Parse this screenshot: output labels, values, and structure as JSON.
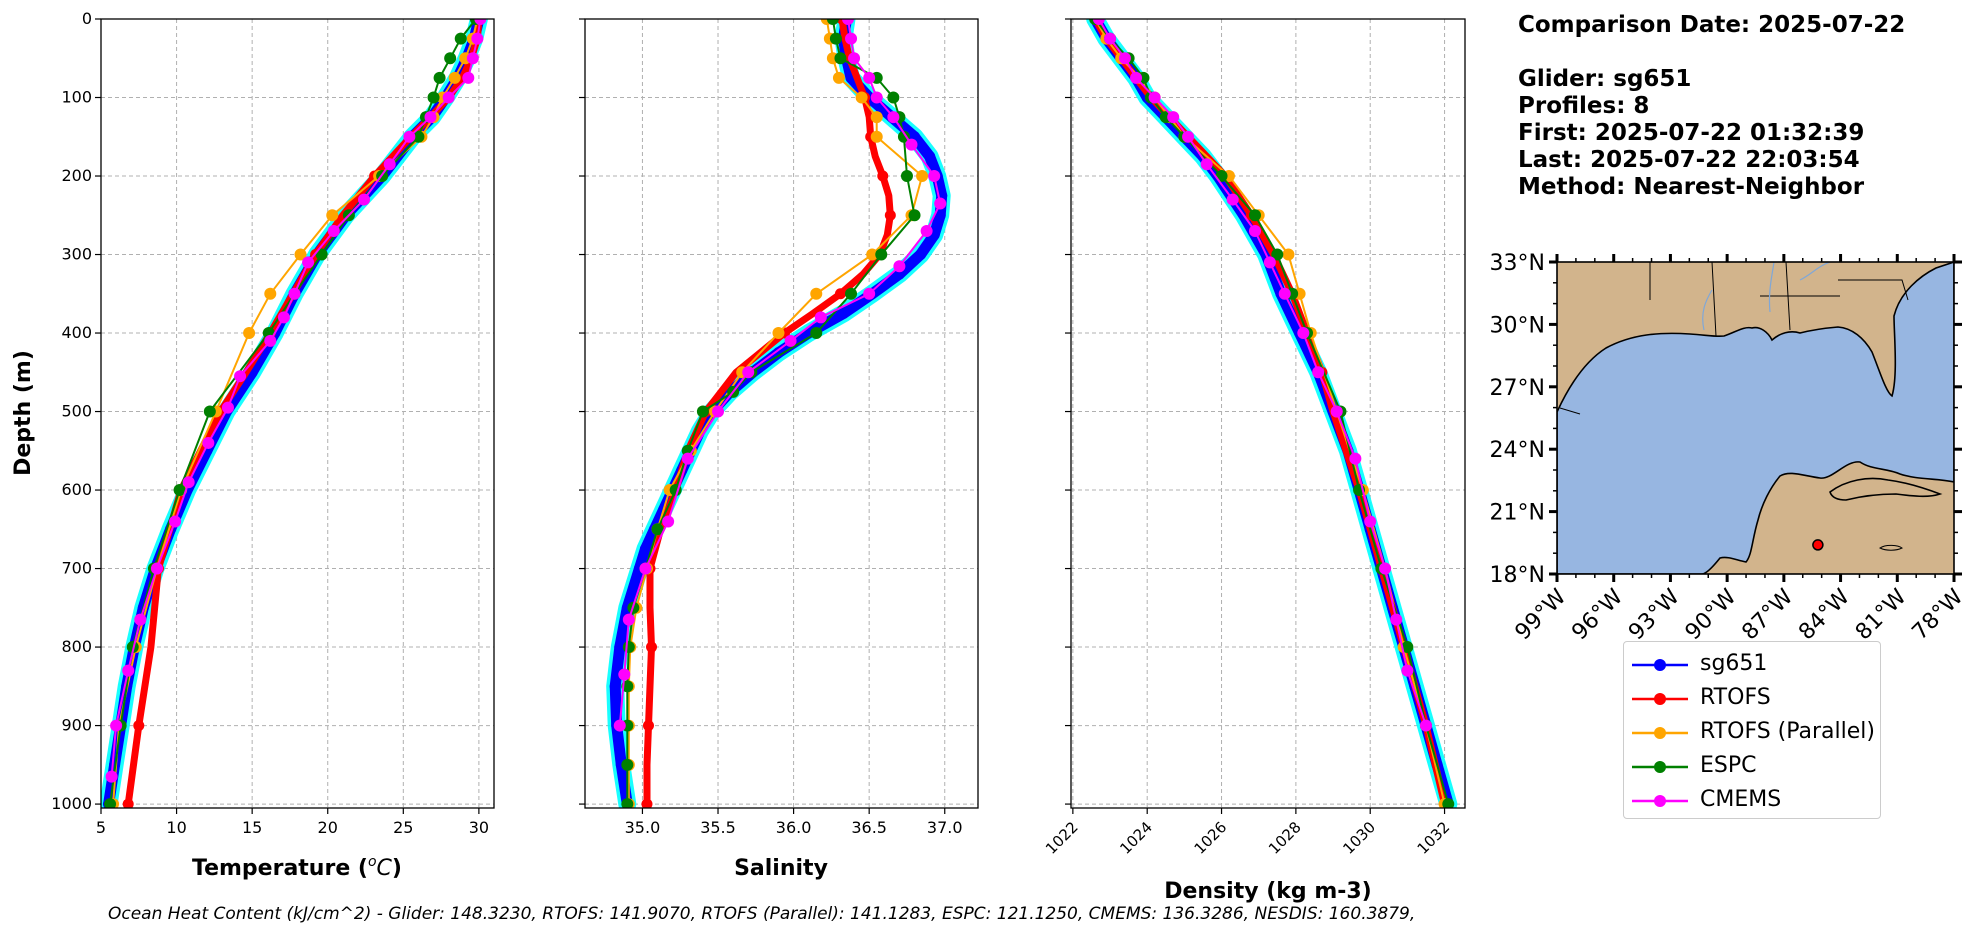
{
  "info": {
    "comparison": "Comparison Date: 2025-07-22",
    "glider": "Glider: sg651",
    "profiles": "Profiles: 8",
    "first": "First: 2025-07-22 01:32:39",
    "last": "Last: 2025-07-22 22:03:54",
    "method": "Method: Nearest-Neighbor"
  },
  "footer": "Ocean Heat Content (kJ/cm^2) - Glider: 148.3230,  RTOFS: 141.9070,  RTOFS (Parallel): 141.1283,  ESPC: 121.1250,  CMEMS: 136.3286,  NESDIS: 160.3879,",
  "colors": {
    "sg651": "#0000ff",
    "sg651_halo": "#00ffff",
    "RTOFS": "#ff0000",
    "RTOFS (Parallel)": "#ffa500",
    "ESPC": "#008000",
    "CMEMS": "#ff00ff",
    "land": "#d2b48c",
    "ocean": "#97b6e1",
    "grid": "#b0b0b0"
  },
  "legend": [
    {
      "key": "sg651",
      "label": "sg651",
      "color": "#0000ff"
    },
    {
      "key": "RTOFS",
      "label": "RTOFS",
      "color": "#ff0000"
    },
    {
      "key": "RTOFS (Parallel)",
      "label": "RTOFS (Parallel)",
      "color": "#ffa500"
    },
    {
      "key": "ESPC",
      "label": "ESPC",
      "color": "#008000"
    },
    {
      "key": "CMEMS",
      "label": "CMEMS",
      "color": "#ff00ff"
    }
  ],
  "map": {
    "lon_ticks": [
      "99°W",
      "96°W",
      "93°W",
      "90°W",
      "87°W",
      "84°W",
      "81°W",
      "78°W"
    ],
    "lat_ticks": [
      "33°N",
      "30°N",
      "27°N",
      "24°N",
      "21°N",
      "18°N"
    ],
    "xlim": [
      -99,
      -78
    ],
    "ylim": [
      18,
      33
    ],
    "glider_position": {
      "lon": -85.2,
      "lat": 19.4
    }
  },
  "chart_data": [
    {
      "type": "line",
      "id": "temperature",
      "xlabel": "Temperature (oC)",
      "ylabel": "Depth (m)",
      "xlim": [
        5,
        31
      ],
      "ylim": [
        1005,
        0
      ],
      "xticks": [
        5,
        10,
        15,
        20,
        25,
        30
      ],
      "yticks": [
        0,
        100,
        200,
        300,
        400,
        500,
        600,
        700,
        800,
        900,
        1000
      ],
      "series": [
        {
          "name": "sg651",
          "depth": [
            0,
            25,
            50,
            75,
            100,
            125,
            150,
            175,
            200,
            250,
            300,
            350,
            400,
            450,
            500,
            550,
            600,
            650,
            700,
            750,
            800,
            850,
            900,
            950,
            1000
          ],
          "values": [
            30.0,
            29.7,
            29.2,
            28.6,
            27.8,
            26.9,
            25.6,
            24.6,
            23.6,
            21.2,
            19.3,
            17.8,
            16.5,
            15.0,
            13.3,
            12.0,
            10.7,
            9.6,
            8.6,
            7.8,
            7.2,
            6.7,
            6.3,
            5.9,
            5.5
          ]
        },
        {
          "name": "RTOFS",
          "depth": [
            0,
            25,
            50,
            75,
            100,
            125,
            150,
            175,
            200,
            250,
            300,
            350,
            400,
            450,
            500,
            600,
            700,
            800,
            900,
            1000
          ],
          "values": [
            30.0,
            29.9,
            29.5,
            28.9,
            28.0,
            26.8,
            25.5,
            24.3,
            23.1,
            21.0,
            19.2,
            17.7,
            16.2,
            14.6,
            12.9,
            10.3,
            8.8,
            8.3,
            7.5,
            6.8
          ]
        },
        {
          "name": "RTOFS (Parallel)",
          "depth": [
            0,
            25,
            50,
            75,
            100,
            125,
            150,
            200,
            250,
            300,
            350,
            400,
            500,
            600,
            700,
            800,
            900,
            1000
          ],
          "values": [
            29.9,
            29.6,
            29.1,
            28.4,
            27.6,
            27.0,
            26.2,
            23.4,
            20.3,
            18.2,
            16.2,
            14.8,
            12.6,
            10.3,
            8.7,
            7.3,
            6.2,
            5.8
          ]
        },
        {
          "name": "ESPC",
          "depth": [
            0,
            25,
            50,
            75,
            100,
            125,
            150,
            200,
            250,
            300,
            350,
            400,
            500,
            600,
            700,
            800,
            900,
            1000
          ],
          "values": [
            29.8,
            28.8,
            28.1,
            27.4,
            27.0,
            26.5,
            26.0,
            23.6,
            21.4,
            19.6,
            17.8,
            16.1,
            12.2,
            10.2,
            8.5,
            7.1,
            6.3,
            5.6
          ]
        },
        {
          "name": "CMEMS",
          "depth": [
            0,
            25,
            50,
            75,
            100,
            125,
            150,
            185,
            230,
            270,
            310,
            350,
            380,
            410,
            455,
            495,
            540,
            590,
            640,
            700,
            765,
            830,
            900,
            965
          ],
          "values": [
            30.1,
            29.9,
            29.6,
            29.3,
            28.0,
            26.8,
            25.4,
            24.1,
            22.4,
            20.4,
            18.7,
            17.8,
            17.1,
            16.2,
            14.2,
            13.4,
            12.1,
            10.8,
            9.9,
            8.7,
            7.6,
            6.8,
            6.0,
            5.7
          ]
        }
      ]
    },
    {
      "type": "line",
      "id": "salinity",
      "xlabel": "Salinity",
      "xlim": [
        34.62,
        37.22
      ],
      "ylim": [
        1005,
        0
      ],
      "xticks": [
        35.0,
        35.5,
        36.0,
        36.5,
        37.0
      ],
      "xticklabels": [
        "35.0",
        "35.5",
        "36.0",
        "36.5",
        "37.0"
      ],
      "series": [
        {
          "name": "sg651",
          "depth": [
            0,
            25,
            50,
            75,
            100,
            125,
            150,
            175,
            200,
            225,
            250,
            275,
            300,
            325,
            350,
            375,
            400,
            425,
            450,
            475,
            500,
            525,
            550,
            575,
            600,
            625,
            650,
            675,
            700,
            750,
            800,
            850,
            900,
            950,
            1000
          ],
          "values": [
            36.35,
            36.33,
            36.35,
            36.38,
            36.5,
            36.65,
            36.8,
            36.9,
            36.95,
            36.98,
            36.97,
            36.93,
            36.84,
            36.7,
            36.52,
            36.33,
            36.1,
            35.9,
            35.73,
            35.58,
            35.46,
            35.38,
            35.32,
            35.26,
            35.2,
            35.14,
            35.08,
            35.02,
            34.98,
            34.9,
            34.85,
            34.82,
            34.83,
            34.86,
            34.9
          ]
        },
        {
          "name": "RTOFS",
          "depth": [
            0,
            25,
            50,
            75,
            100,
            125,
            150,
            175,
            200,
            225,
            250,
            275,
            300,
            325,
            350,
            375,
            400,
            450,
            500,
            550,
            600,
            650,
            700,
            750,
            800,
            850,
            900,
            950,
            1000
          ],
          "values": [
            36.32,
            36.34,
            36.37,
            36.42,
            36.47,
            36.5,
            36.51,
            36.54,
            36.59,
            36.63,
            36.64,
            36.62,
            36.57,
            36.46,
            36.31,
            36.13,
            35.94,
            35.62,
            35.42,
            35.3,
            35.22,
            35.12,
            35.05,
            35.05,
            35.06,
            35.05,
            35.04,
            35.03,
            35.03
          ]
        },
        {
          "name": "RTOFS (Parallel)",
          "depth": [
            0,
            25,
            50,
            75,
            100,
            125,
            150,
            200,
            250,
            300,
            350,
            400,
            450,
            500,
            550,
            600,
            650,
            700,
            750,
            800,
            850,
            900,
            950,
            1000
          ],
          "values": [
            36.22,
            36.24,
            36.26,
            36.3,
            36.45,
            36.55,
            36.55,
            36.85,
            36.78,
            36.52,
            36.15,
            35.9,
            35.66,
            35.48,
            35.32,
            35.18,
            35.1,
            35.03,
            34.96,
            34.92,
            34.91,
            34.91,
            34.91,
            34.91
          ]
        },
        {
          "name": "ESPC",
          "depth": [
            0,
            25,
            50,
            75,
            100,
            125,
            150,
            200,
            250,
            300,
            350,
            400,
            450,
            475,
            500,
            550,
            600,
            650,
            700,
            750,
            800,
            850,
            900,
            950,
            1000
          ],
          "values": [
            36.26,
            36.28,
            36.31,
            36.55,
            36.66,
            36.7,
            36.73,
            36.75,
            36.8,
            36.58,
            36.38,
            36.15,
            35.72,
            35.6,
            35.4,
            35.3,
            35.22,
            35.1,
            35.02,
            34.94,
            34.91,
            34.9,
            34.9,
            34.9,
            34.9
          ]
        },
        {
          "name": "CMEMS",
          "depth": [
            0,
            25,
            50,
            75,
            100,
            125,
            160,
            200,
            235,
            270,
            315,
            350,
            380,
            410,
            450,
            500,
            560,
            640,
            700,
            765,
            835,
            900
          ],
          "values": [
            36.36,
            36.38,
            36.4,
            36.5,
            36.55,
            36.66,
            36.78,
            36.93,
            36.97,
            36.88,
            36.7,
            36.5,
            36.18,
            35.98,
            35.7,
            35.5,
            35.3,
            35.17,
            35.02,
            34.91,
            34.88,
            34.85
          ]
        }
      ]
    },
    {
      "type": "line",
      "id": "density",
      "xlabel": "Density (kg m-3)",
      "xlim": [
        1021.95,
        1032.55
      ],
      "ylim": [
        1005,
        0
      ],
      "xticks": [
        1022,
        1024,
        1026,
        1028,
        1030,
        1032
      ],
      "series": [
        {
          "name": "sg651",
          "depth": [
            0,
            25,
            50,
            75,
            100,
            125,
            150,
            175,
            200,
            250,
            300,
            350,
            400,
            450,
            500,
            550,
            600,
            650,
            700,
            750,
            800,
            850,
            900,
            950,
            1000
          ],
          "values": [
            1022.6,
            1022.9,
            1023.3,
            1023.7,
            1024.0,
            1024.5,
            1025.0,
            1025.5,
            1025.9,
            1026.6,
            1027.2,
            1027.6,
            1028.1,
            1028.6,
            1029.0,
            1029.4,
            1029.7,
            1030.0,
            1030.3,
            1030.6,
            1030.9,
            1031.2,
            1031.5,
            1031.8,
            1032.1
          ]
        },
        {
          "name": "RTOFS",
          "depth": [
            0,
            25,
            50,
            75,
            100,
            125,
            150,
            200,
            250,
            300,
            350,
            400,
            450,
            500,
            600,
            700,
            800,
            900,
            1000
          ],
          "values": [
            1022.6,
            1022.9,
            1023.3,
            1023.7,
            1024.1,
            1024.6,
            1025.1,
            1026.1,
            1026.8,
            1027.4,
            1027.9,
            1028.3,
            1028.7,
            1029.0,
            1029.7,
            1030.3,
            1030.9,
            1031.5,
            1032.0
          ]
        },
        {
          "name": "RTOFS (Parallel)",
          "depth": [
            0,
            25,
            50,
            75,
            100,
            125,
            150,
            200,
            250,
            300,
            350,
            400,
            500,
            600,
            700,
            800,
            900,
            1000
          ],
          "values": [
            1022.6,
            1022.9,
            1023.3,
            1023.8,
            1024.2,
            1024.6,
            1025.0,
            1026.2,
            1027.0,
            1027.8,
            1028.1,
            1028.4,
            1029.1,
            1029.8,
            1030.4,
            1030.9,
            1031.5,
            1032.0
          ]
        },
        {
          "name": "ESPC",
          "depth": [
            0,
            25,
            50,
            75,
            100,
            125,
            150,
            200,
            250,
            300,
            350,
            400,
            500,
            600,
            700,
            800,
            900,
            1000
          ],
          "values": [
            1022.6,
            1023.0,
            1023.5,
            1023.9,
            1024.1,
            1024.5,
            1025.0,
            1026.0,
            1026.9,
            1027.5,
            1027.9,
            1028.3,
            1029.2,
            1029.7,
            1030.3,
            1031.0,
            1031.5,
            1032.1
          ]
        },
        {
          "name": "CMEMS",
          "depth": [
            0,
            25,
            50,
            75,
            100,
            125,
            150,
            185,
            230,
            270,
            310,
            350,
            400,
            450,
            500,
            560,
            640,
            700,
            765,
            830,
            900
          ],
          "values": [
            1022.7,
            1023.0,
            1023.4,
            1023.7,
            1024.2,
            1024.7,
            1025.1,
            1025.6,
            1026.3,
            1026.9,
            1027.3,
            1027.7,
            1028.2,
            1028.6,
            1029.1,
            1029.6,
            1030.0,
            1030.4,
            1030.7,
            1031.0,
            1031.5
          ]
        }
      ]
    }
  ]
}
